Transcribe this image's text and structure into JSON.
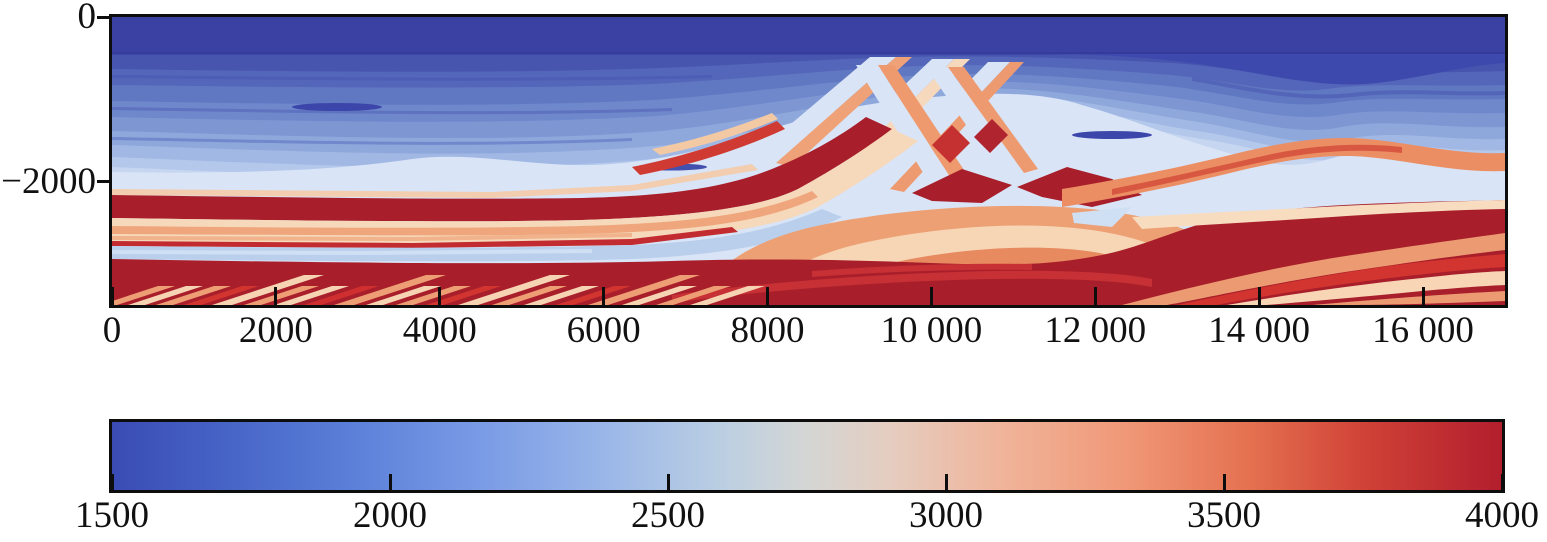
{
  "chart_data": {
    "type": "heatmap",
    "subject": "2D seismic P-wave velocity model cross-section (Marmousi-style)",
    "grid": false,
    "x_axis": {
      "range": [
        0,
        17000
      ],
      "tick_values": [
        0,
        2000,
        4000,
        6000,
        8000,
        10000,
        12000,
        14000,
        16000
      ],
      "tick_labels": [
        "0",
        "2000",
        "4000",
        "6000",
        "8000",
        "10 000",
        "12 000",
        "14 000",
        "16 000"
      ]
    },
    "y_axis": {
      "range": [
        -3500,
        0
      ],
      "tick_values": [
        0,
        -2000
      ],
      "tick_labels": [
        "0",
        "−2000"
      ]
    },
    "colorbar": {
      "orientation": "horizontal",
      "range": [
        1500,
        4000
      ],
      "tick_values": [
        1500,
        2000,
        2500,
        3000,
        3500,
        4000
      ],
      "tick_labels": [
        "1500",
        "2000",
        "2500",
        "3000",
        "3500",
        "4000"
      ],
      "colormap": "coolwarm",
      "gradient_stops": [
        {
          "pos": 0.0,
          "color": "#3a4cb4"
        },
        {
          "pos": 0.08,
          "color": "#4663c6"
        },
        {
          "pos": 0.17,
          "color": "#5a7fd8"
        },
        {
          "pos": 0.27,
          "color": "#7b9ce6"
        },
        {
          "pos": 0.36,
          "color": "#9cb8e8"
        },
        {
          "pos": 0.44,
          "color": "#bccfe2"
        },
        {
          "pos": 0.5,
          "color": "#d4d6d4"
        },
        {
          "pos": 0.56,
          "color": "#e5cdc0"
        },
        {
          "pos": 0.64,
          "color": "#f0b49a"
        },
        {
          "pos": 0.73,
          "color": "#f09877"
        },
        {
          "pos": 0.82,
          "color": "#e4704f"
        },
        {
          "pos": 0.9,
          "color": "#d04237"
        },
        {
          "pos": 1.0,
          "color": "#b31e2d"
        }
      ]
    },
    "structure_layers": [
      {
        "name": "water layer",
        "depth_range": [
          0,
          -450
        ],
        "velocity": 1500
      },
      {
        "name": "upper sediments, lightening blue strata",
        "depth_range": [
          -450,
          -1900
        ],
        "velocity_range": [
          1600,
          2500
        ]
      },
      {
        "name": "pale transition zone",
        "depth_range": [
          -1900,
          -2200
        ],
        "velocity_range": [
          2500,
          2700
        ]
      },
      {
        "name": "high-velocity dark red band (left)",
        "depth_range": [
          -2200,
          -2450
        ],
        "velocity_range": [
          3800,
          4000
        ]
      },
      {
        "name": "cream/salmon unit",
        "depth_range": [
          -2450,
          -2750
        ],
        "velocity_range": [
          2900,
          3300
        ]
      },
      {
        "name": "thin low-velocity pale blue band",
        "depth_range": [
          -2750,
          -2950
        ],
        "velocity_range": [
          2400,
          2600
        ]
      },
      {
        "name": "deep high-velocity unit with dipping stripes",
        "depth_range": [
          -2950,
          -3500
        ],
        "velocity_range": [
          3000,
          4000
        ]
      },
      {
        "name": "faulted thrust zone with criss-cross slivers",
        "x_range": [
          7000,
          11500
        ],
        "depth_range": [
          -500,
          -2300
        ]
      },
      {
        "name": "salmon anticline dome",
        "x_range": [
          7500,
          13500
        ],
        "depth_range": [
          -2300,
          -3500
        ]
      }
    ]
  },
  "figure": {
    "background": "#ffffff",
    "frame_color": "#0d0d0d",
    "water_color": "#3b41a3"
  }
}
